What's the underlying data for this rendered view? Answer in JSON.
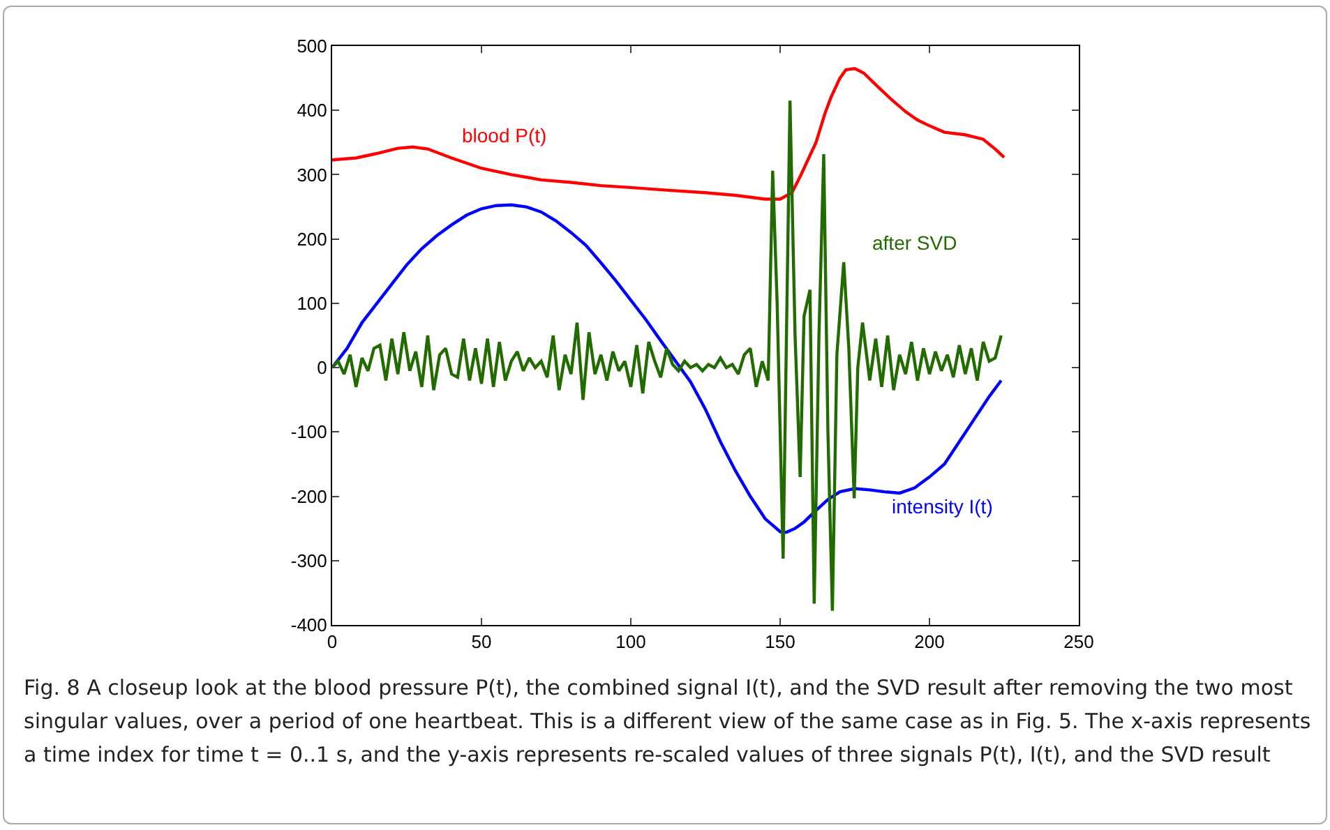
{
  "chart_data": {
    "type": "line",
    "xlim": [
      0,
      250
    ],
    "xticks": [
      0,
      50,
      100,
      150,
      200,
      250
    ],
    "ylim": [
      -400,
      500
    ],
    "yticks": [
      -400,
      -300,
      -200,
      -100,
      0,
      100,
      200,
      300,
      400,
      500
    ],
    "grid": false,
    "legend": false,
    "marker": "none",
    "line_style": "solid",
    "series": [
      {
        "name": "blood P(t)",
        "color": "#ff0000",
        "x": [
          0,
          8,
          15,
          22,
          27,
          32,
          40,
          50,
          60,
          70,
          80,
          90,
          100,
          112,
          125,
          135,
          145,
          150,
          154,
          157,
          160,
          162,
          165,
          167,
          170,
          172,
          175,
          178,
          182,
          187,
          192,
          196,
          200,
          205,
          212,
          218,
          222,
          225
        ],
        "values": [
          323,
          326,
          333,
          341,
          343,
          340,
          326,
          310,
          300,
          292,
          288,
          283,
          280,
          276,
          272,
          268,
          262,
          262,
          272,
          300,
          330,
          350,
          395,
          420,
          450,
          463,
          465,
          458,
          440,
          418,
          398,
          385,
          376,
          366,
          362,
          355,
          340,
          327
        ]
      },
      {
        "name": "intensity I(t)",
        "color": "#0000ff",
        "x": [
          0,
          5,
          10,
          15,
          20,
          25,
          30,
          35,
          40,
          45,
          50,
          55,
          60,
          65,
          70,
          75,
          80,
          85,
          90,
          95,
          100,
          105,
          110,
          115,
          120,
          125,
          130,
          135,
          140,
          145,
          150,
          152,
          155,
          158,
          162,
          166,
          170,
          175,
          180,
          185,
          190,
          195,
          200,
          205,
          210,
          215,
          220,
          224
        ],
        "values": [
          0,
          30,
          70,
          100,
          130,
          160,
          185,
          205,
          222,
          237,
          247,
          252,
          253,
          250,
          242,
          228,
          210,
          190,
          163,
          135,
          105,
          75,
          42,
          10,
          -22,
          -65,
          -115,
          -160,
          -200,
          -235,
          -255,
          -256,
          -250,
          -240,
          -222,
          -205,
          -193,
          -188,
          -190,
          -193,
          -195,
          -187,
          -170,
          -150,
          -115,
          -80,
          -45,
          -20
        ]
      },
      {
        "name": "after SVD",
        "color": "#226b00",
        "x": [
          0,
          2,
          4,
          6,
          8,
          10,
          12,
          14,
          16,
          18,
          20,
          22,
          24,
          26,
          28,
          30,
          32,
          34,
          36,
          38,
          40,
          42,
          44,
          46,
          48,
          50,
          52,
          54,
          56,
          58,
          60,
          62,
          64,
          66,
          68,
          70,
          72,
          74,
          76,
          78,
          80,
          82,
          84,
          86,
          88,
          90,
          92,
          94,
          96,
          98,
          100,
          102,
          104,
          106,
          108,
          110,
          112,
          114,
          116,
          118,
          120,
          122,
          124,
          126,
          128,
          130,
          132,
          134,
          136,
          138,
          140,
          142,
          144,
          146,
          147.5,
          149,
          151,
          153.3,
          155,
          156.7,
          158,
          160,
          161.4,
          163,
          164.6,
          166,
          167.5,
          169,
          171.3,
          173,
          174.8,
          176,
          177.6,
          180,
          182,
          184,
          186,
          188,
          190,
          192,
          194,
          196,
          198,
          200,
          202,
          204,
          206,
          208,
          210,
          212,
          214,
          216,
          218,
          220,
          222,
          224
        ],
        "values": [
          0,
          10,
          -10,
          20,
          -30,
          15,
          -5,
          30,
          35,
          -20,
          45,
          -10,
          55,
          -5,
          25,
          -30,
          50,
          -35,
          20,
          30,
          -10,
          -15,
          45,
          -20,
          30,
          -25,
          45,
          -30,
          40,
          -20,
          10,
          25,
          -5,
          15,
          0,
          10,
          -15,
          50,
          -35,
          20,
          -10,
          70,
          -50,
          55,
          -10,
          20,
          -20,
          25,
          -5,
          10,
          -30,
          35,
          -40,
          40,
          10,
          -15,
          30,
          5,
          -5,
          10,
          0,
          5,
          -5,
          5,
          0,
          15,
          0,
          5,
          -10,
          20,
          30,
          -30,
          10,
          -20,
          306,
          100,
          -297,
          415,
          50,
          -170,
          80,
          121,
          -367,
          50,
          332,
          -100,
          -378,
          20,
          164,
          30,
          -203,
          0,
          70,
          -20,
          45,
          -30,
          50,
          -35,
          20,
          -10,
          40,
          -20,
          30,
          -10,
          25,
          -5,
          20,
          -15,
          35,
          -10,
          30,
          -20,
          40,
          10,
          15,
          50
        ]
      }
    ],
    "annotations": [
      "Fig. 8  A closeup look at the blood pressure P(t), the combined signal I(t), and the SVD result after removing the two most singular values, over a period of one heartbeat. This is a different view of the same case as in Fig. 5. The x-axis represents a time index for time t = 0..1 s, and the y-axis represents re-scaled values of three signals P(t), I(t), and the SVD result"
    ]
  }
}
